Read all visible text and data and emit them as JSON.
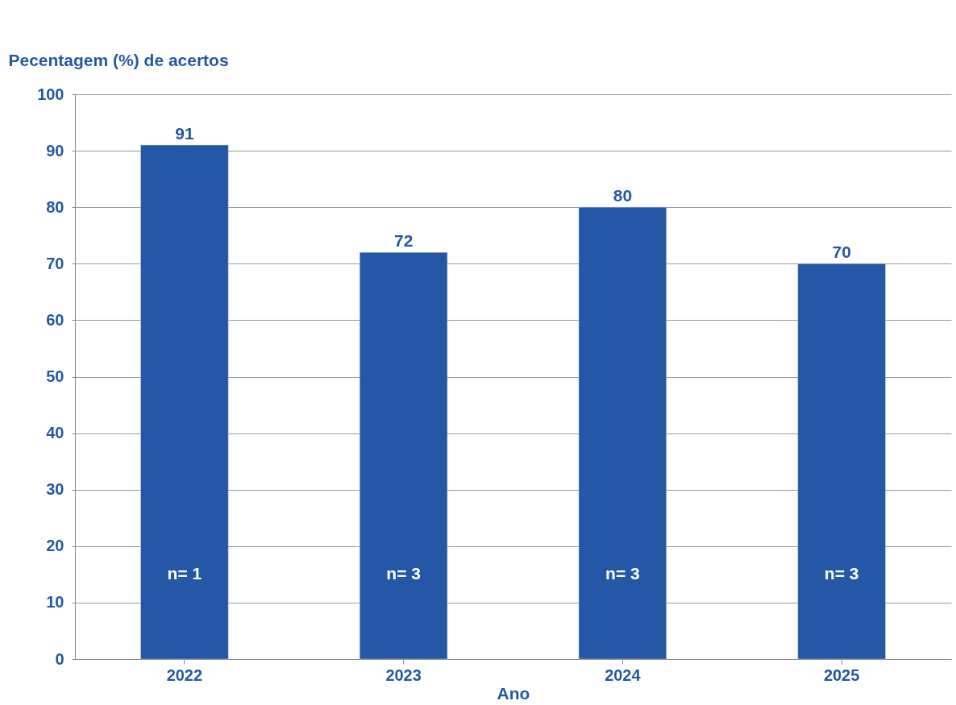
{
  "chart_data": {
    "type": "bar",
    "ylabel": "Pecentagem (%) de acertos",
    "xlabel": "Ano",
    "categories": [
      "2022",
      "2023",
      "2024",
      "2025"
    ],
    "values": [
      91,
      72,
      80,
      70
    ],
    "color": "#2458a6",
    "ylim": [
      0,
      100
    ],
    "yticks": [
      0,
      10,
      20,
      30,
      40,
      50,
      60,
      70,
      80,
      90,
      100
    ],
    "grid": "y",
    "data_labels": true,
    "annotations": [
      "n= 1",
      "n= 3",
      "n= 3",
      "n= 3"
    ]
  }
}
